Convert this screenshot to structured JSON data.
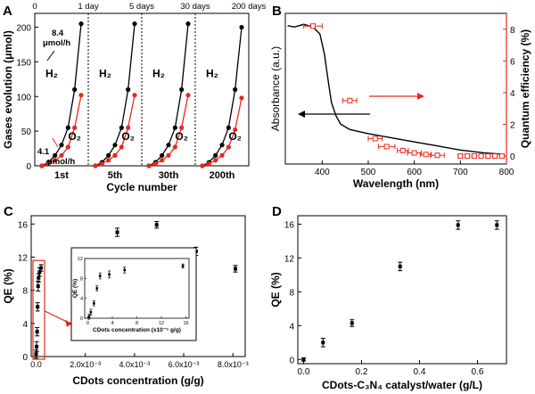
{
  "panels": {
    "A": {
      "letter": "A"
    },
    "B": {
      "letter": "B"
    },
    "C": {
      "letter": "C"
    },
    "D": {
      "letter": "D"
    }
  },
  "colors": {
    "black": "#000000",
    "red": "#e8281c"
  },
  "chart_data": [
    {
      "panel": "A",
      "type": "line",
      "xlabel": "Cycle number",
      "ylabel": "Gases evolution (μmol)",
      "ylim": [
        0,
        220
      ],
      "y_ticks": [
        0,
        50,
        100,
        150,
        200
      ],
      "top_ticks": [
        "0",
        "1 day",
        "5 days",
        "30 days",
        "200 days"
      ],
      "cycle_labels": [
        "1st",
        "5th",
        "30th",
        "200th"
      ],
      "gas_labels": {
        "h2": "H₂",
        "o2": "O₂"
      },
      "annotations": {
        "h2_rate_value": "8.4",
        "h2_rate_unit": "μmol/h",
        "o2_rate_value": "4.1",
        "o2_rate_unit": "μmol/h"
      },
      "series": [
        {
          "name": "H2",
          "color": "#000000",
          "cycles": [
            [
              0,
              5,
              15,
              30,
              55,
              110,
              205
            ],
            [
              0,
              5,
              15,
              30,
              55,
              110,
              205
            ],
            [
              0,
              5,
              15,
              30,
              55,
              110,
              205
            ],
            [
              0,
              5,
              15,
              30,
              55,
              110,
              200
            ]
          ]
        },
        {
          "name": "O2",
          "color": "#e8281c",
          "cycles": [
            [
              0,
              3,
              8,
              15,
              27,
              55,
              102
            ],
            [
              0,
              3,
              8,
              15,
              27,
              55,
              102
            ],
            [
              0,
              3,
              8,
              15,
              27,
              55,
              102
            ],
            [
              0,
              3,
              8,
              15,
              27,
              52,
              98
            ]
          ]
        }
      ],
      "grid": false
    },
    {
      "panel": "B",
      "type": "line",
      "xlabel": "Wavelength (nm)",
      "ylabel": "Absorbance (a.u.)",
      "y2label": "Quantum efficiency (%)",
      "xlim": [
        320,
        800
      ],
      "x_ticks": [
        400,
        500,
        600,
        700,
        800
      ],
      "y2lim": [
        -0.5,
        9
      ],
      "y2_ticks": [
        0,
        2,
        4,
        6,
        8
      ],
      "absorbance_curve": {
        "x": [
          325,
          340,
          360,
          380,
          395,
          405,
          412,
          420,
          430,
          440,
          460,
          500,
          550,
          600,
          650,
          700,
          750,
          790
        ],
        "y": [
          0.96,
          0.95,
          0.97,
          0.95,
          0.9,
          0.75,
          0.58,
          0.4,
          0.3,
          0.24,
          0.2,
          0.17,
          0.14,
          0.11,
          0.08,
          0.05,
          0.03,
          0.02
        ]
      },
      "qe_points": [
        {
          "x": 380,
          "y": 8.2,
          "xerr": 20
        },
        {
          "x": 460,
          "y": 3.5,
          "xerr": 15
        },
        {
          "x": 515,
          "y": 1.1,
          "xerr": 15
        },
        {
          "x": 540,
          "y": 0.6,
          "xerr": 18
        },
        {
          "x": 575,
          "y": 0.35,
          "xerr": 12
        },
        {
          "x": 600,
          "y": 0.2,
          "xerr": 15
        },
        {
          "x": 625,
          "y": 0.1,
          "xerr": 12
        },
        {
          "x": 650,
          "y": 0.05,
          "xerr": 15
        },
        {
          "x": 700,
          "y": 0.0,
          "xerr": 5
        },
        {
          "x": 715,
          "y": 0.0,
          "xerr": 5
        },
        {
          "x": 730,
          "y": 0.0,
          "xerr": 5
        },
        {
          "x": 745,
          "y": 0.0,
          "xerr": 5
        },
        {
          "x": 760,
          "y": 0.0,
          "xerr": 5
        },
        {
          "x": 775,
          "y": 0.0,
          "xerr": 5
        },
        {
          "x": 790,
          "y": 0.0,
          "xerr": 5
        }
      ]
    },
    {
      "panel": "C",
      "type": "scatter",
      "xlabel": "CDots concentration (g/g)",
      "ylabel": "QE (%)",
      "xlim": [
        -0.0002,
        0.0085
      ],
      "ylim": [
        0,
        17
      ],
      "x_tick_labels": [
        "0.0",
        "2.0x10⁻³",
        "4.0x10⁻³",
        "6.0x10⁻³",
        "8.0x10⁻³"
      ],
      "x_ticks": [
        0,
        0.002,
        0.004,
        0.006,
        0.008
      ],
      "y_ticks": [
        0,
        4,
        8,
        12,
        16
      ],
      "points": [
        {
          "x": 0.0,
          "y": 0.3,
          "err": 0.5
        },
        {
          "x": 2e-05,
          "y": 1.2,
          "err": 0.6
        },
        {
          "x": 4e-05,
          "y": 3.0,
          "err": 0.5
        },
        {
          "x": 6e-05,
          "y": 6.0,
          "err": 0.5
        },
        {
          "x": 8e-05,
          "y": 8.5,
          "err": 0.6
        },
        {
          "x": 0.0001,
          "y": 9.5,
          "err": 0.5
        },
        {
          "x": 0.00014,
          "y": 10.2,
          "err": 0.5
        },
        {
          "x": 0.0002,
          "y": 10.7,
          "err": 0.4
        },
        {
          "x": 0.0018,
          "y": 11.2,
          "err": 0.7
        },
        {
          "x": 0.0033,
          "y": 15.0,
          "err": 0.5
        },
        {
          "x": 0.0049,
          "y": 15.9,
          "err": 0.4
        },
        {
          "x": 0.0065,
          "y": 12.7,
          "err": 0.5
        },
        {
          "x": 0.0081,
          "y": 10.6,
          "err": 0.4
        }
      ],
      "inset": {
        "xlabel": "CDots concentration (x10⁻⁵ g/g)",
        "ylabel": "QE (%)",
        "xlim": [
          -0.5,
          16.5
        ],
        "ylim": [
          0,
          12
        ],
        "x_ticks": [
          0,
          4,
          8,
          12,
          16
        ],
        "y_ticks": [
          0,
          4,
          8,
          12
        ],
        "points": [
          {
            "x": 0.2,
            "y": 0.3,
            "err": 0.5
          },
          {
            "x": 0.5,
            "y": 1.2,
            "err": 0.6
          },
          {
            "x": 1.0,
            "y": 3.0,
            "err": 0.5
          },
          {
            "x": 1.5,
            "y": 6.0,
            "err": 0.5
          },
          {
            "x": 2.0,
            "y": 8.5,
            "err": 0.6
          },
          {
            "x": 3.5,
            "y": 8.8,
            "err": 0.7
          },
          {
            "x": 6.0,
            "y": 9.7,
            "err": 0.6
          },
          {
            "x": 15.5,
            "y": 10.5,
            "err": 0.4
          }
        ]
      }
    },
    {
      "panel": "D",
      "type": "scatter",
      "xlabel": "CDots-C₃N₄ catalyst/water (g/L)",
      "ylabel": "QE (%)",
      "xlim": [
        -0.02,
        0.7
      ],
      "ylim": [
        -0.5,
        17
      ],
      "x_ticks": [
        0.0,
        0.2,
        0.4,
        0.6
      ],
      "y_ticks": [
        0,
        4,
        8,
        12,
        16
      ],
      "points": [
        {
          "x": 0.0,
          "y": 0.0,
          "err": 0.2
        },
        {
          "x": 0.067,
          "y": 2.0,
          "err": 0.5
        },
        {
          "x": 0.167,
          "y": 4.3,
          "err": 0.4
        },
        {
          "x": 0.333,
          "y": 11.0,
          "err": 0.5
        },
        {
          "x": 0.533,
          "y": 15.9,
          "err": 0.5
        },
        {
          "x": 0.667,
          "y": 15.9,
          "err": 0.5
        }
      ]
    }
  ]
}
